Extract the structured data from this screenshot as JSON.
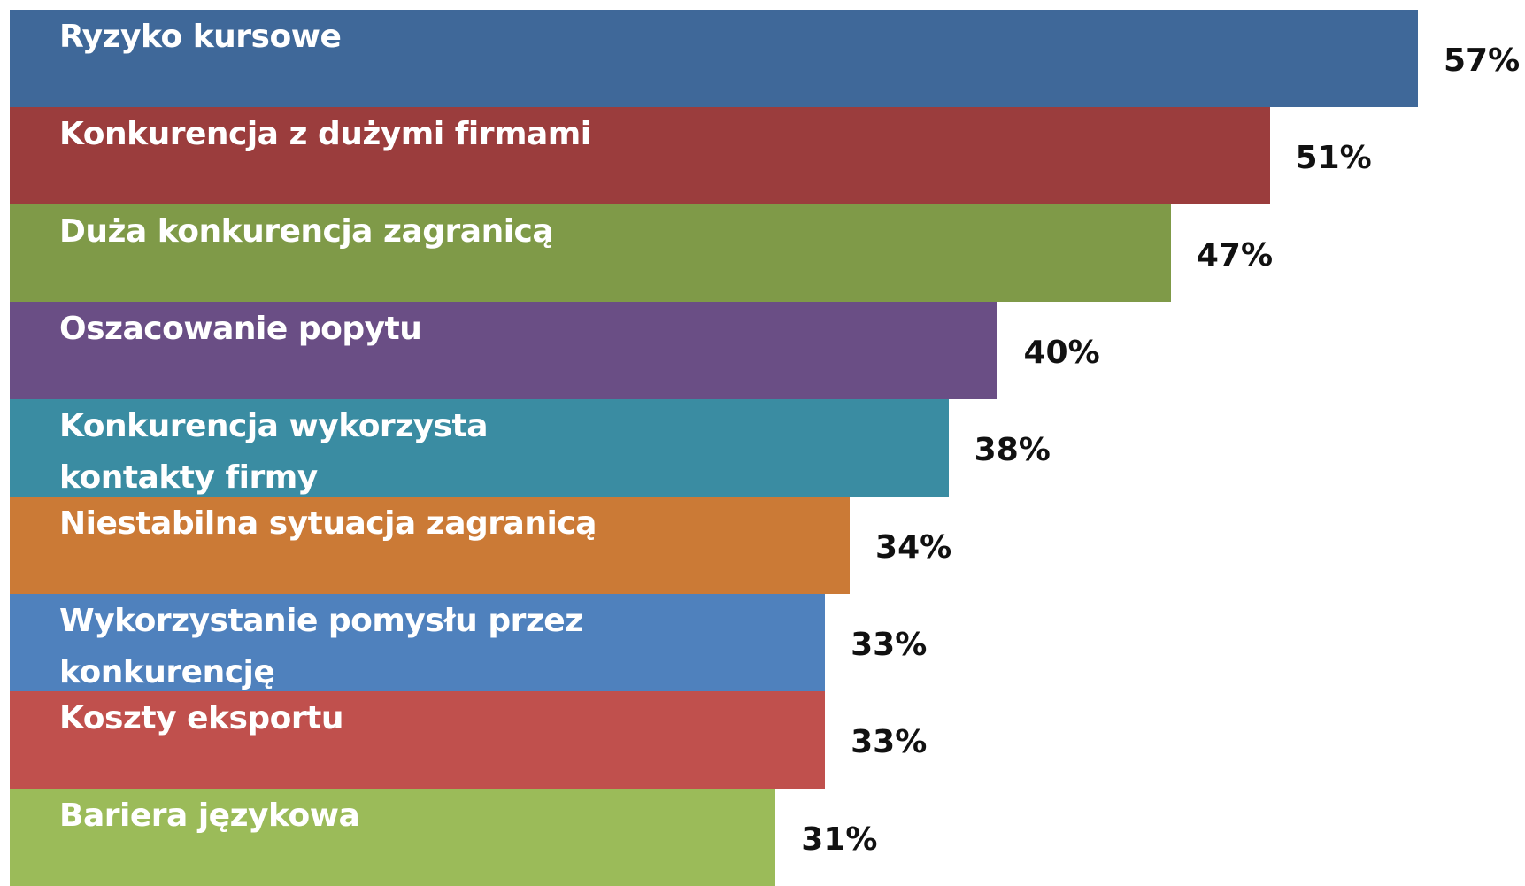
{
  "chart_data": {
    "type": "bar",
    "orientation": "horizontal",
    "categories": [
      "Ryzyko kursowe",
      "Konkurencja z dużymi firmami",
      "Duża konkurencja zagranicą",
      "Oszacowanie popytu",
      "Konkurencja wykorzysta\nkontakty firmy",
      "Niestabilna sytuacja zagranicą",
      "Wykorzystanie pomysłu przez\nkonkurencję",
      "Koszty eksportu",
      "Bariera językowa"
    ],
    "values": [
      57,
      51,
      47,
      40,
      38,
      34,
      33,
      33,
      31
    ],
    "value_labels": [
      "57%",
      "51%",
      "47%",
      "40%",
      "38%",
      "34%",
      "33%",
      "33%",
      "31%"
    ],
    "colors": [
      "#3f6899",
      "#9b3d3d",
      "#7f9a48",
      "#6a4e85",
      "#3a8ca2",
      "#cb7a36",
      "#4f81bd",
      "#c0504d",
      "#9bbb59"
    ]
  }
}
